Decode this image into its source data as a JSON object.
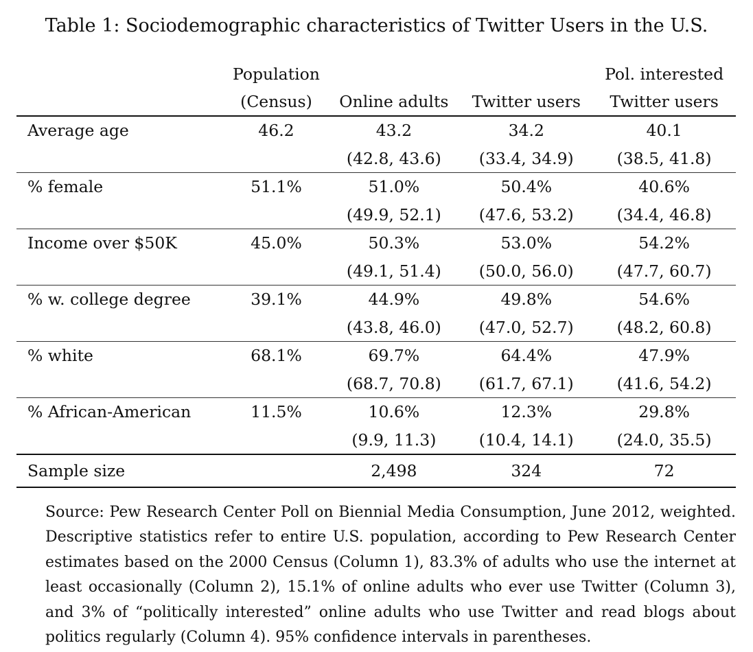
{
  "caption": "Table 1: Sociodemographic characteristics of Twitter Users in the U.S.",
  "columns": {
    "col1_line1": "Population",
    "col1_line2": "(Census)",
    "col2_line1": "",
    "col2_line2": "Online adults",
    "col3_line1": "",
    "col3_line2": "Twitter users",
    "col4_line1": "Pol. interested",
    "col4_line2": "Twitter users"
  },
  "rows": [
    {
      "label": "Average age",
      "census": "46.2",
      "online": "43.2",
      "twitter": "34.2",
      "pol": "40.1",
      "online_ci": "(42.8, 43.6)",
      "twitter_ci": "(33.4, 34.9)",
      "pol_ci": "(38.5, 41.8)"
    },
    {
      "label": "% female",
      "census": "51.1%",
      "online": "51.0%",
      "twitter": "50.4%",
      "pol": "40.6%",
      "online_ci": "(49.9, 52.1)",
      "twitter_ci": "(47.6, 53.2)",
      "pol_ci": "(34.4, 46.8)"
    },
    {
      "label": "Income over $50K",
      "census": "45.0%",
      "online": "50.3%",
      "twitter": "53.0%",
      "pol": "54.2%",
      "online_ci": "(49.1, 51.4)",
      "twitter_ci": "(50.0, 56.0)",
      "pol_ci": "(47.7, 60.7)"
    },
    {
      "label": "% w. college degree",
      "census": "39.1%",
      "online": "44.9%",
      "twitter": "49.8%",
      "pol": "54.6%",
      "online_ci": "(43.8, 46.0)",
      "twitter_ci": "(47.0, 52.7)",
      "pol_ci": "(48.2, 60.8)"
    },
    {
      "label": "% white",
      "census": "68.1%",
      "online": "69.7%",
      "twitter": "64.4%",
      "pol": "47.9%",
      "online_ci": "(68.7, 70.8)",
      "twitter_ci": "(61.7, 67.1)",
      "pol_ci": "(41.6, 54.2)"
    },
    {
      "label": "% African-American",
      "census": "11.5%",
      "online": "10.6%",
      "twitter": "12.3%",
      "pol": "29.8%",
      "online_ci": "(9.9, 11.3)",
      "twitter_ci": "(10.4, 14.1)",
      "pol_ci": "(24.0, 35.5)"
    }
  ],
  "sample": {
    "label": "Sample size",
    "census": "",
    "online": "2,498",
    "twitter": "324",
    "pol": "72"
  },
  "notes": "Source: Pew Research Center Poll on Biennial Media Consumption, June 2012, weighted. Descriptive statistics refer to entire U.S. population, according to Pew Research Center estimates based on the 2000 Census (Column 1), 83.3% of adults who use the internet at least occasionally (Column 2), 15.1% of online adults who ever use Twitter (Column 3), and 3% of “politically interested” online adults who use Twitter and read blogs about politics regularly (Column 4). 95% confidence intervals in parentheses."
}
